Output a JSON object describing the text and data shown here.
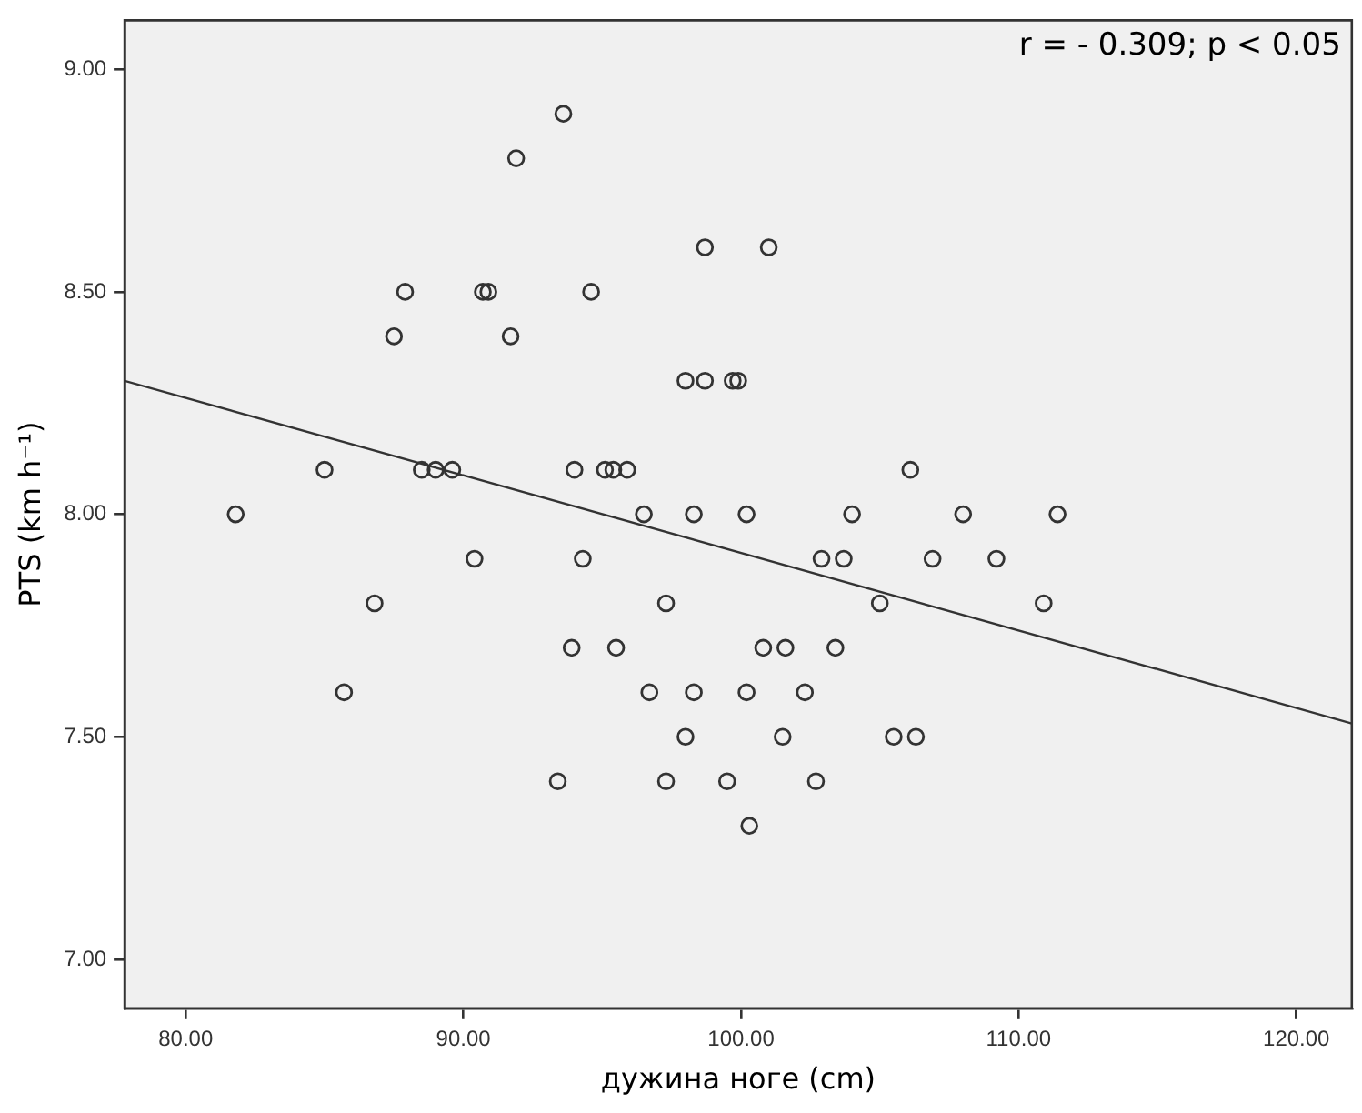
{
  "chart_data": {
    "type": "scatter",
    "xlabel": "дужина ноге (cm)",
    "ylabel": "PTS (km h⁻¹)",
    "annotations": [
      "r = - 0.309; p < 0.05"
    ],
    "xlim": [
      77.8,
      122
    ],
    "ylim": [
      6.89,
      9.11
    ],
    "xticks": [
      {
        "value": 80,
        "label": "80.00"
      },
      {
        "value": 90,
        "label": "90.00"
      },
      {
        "value": 100,
        "label": "100.00"
      },
      {
        "value": 110,
        "label": "110.00"
      },
      {
        "value": 120,
        "label": "120.00"
      }
    ],
    "yticks": [
      {
        "value": 7,
        "label": "7.00"
      },
      {
        "value": 7.5,
        "label": "7.50"
      },
      {
        "value": 8,
        "label": "8.00"
      },
      {
        "value": 8.5,
        "label": "8.50"
      },
      {
        "value": 9,
        "label": "9.00"
      }
    ],
    "marker": "circle",
    "series": [
      {
        "type": "scatter",
        "color": "#333333",
        "x": [
          81.8,
          85.0,
          87.9,
          87.5,
          88.5,
          89.0,
          89.6,
          90.7,
          90.9,
          91.9,
          91.7,
          93.6,
          94.6,
          94.0,
          95.1,
          95.4,
          95.9,
          96.5,
          98.3,
          100.2,
          98.7,
          98.0,
          98.7,
          99.7,
          99.9,
          101.0,
          106.1,
          104.0,
          108.0,
          111.4,
          90.4,
          94.3,
          86.8,
          97.3,
          93.9,
          95.5,
          85.7,
          96.7,
          98.3,
          100.2,
          98.0,
          93.4,
          97.3,
          99.5,
          100.3,
          102.9,
          103.7,
          106.9,
          109.2,
          105.0,
          110.9,
          100.8,
          101.6,
          103.4,
          102.3,
          101.5,
          105.5,
          106.3,
          102.7
        ],
        "values": [
          8.0,
          8.1,
          8.5,
          8.4,
          8.1,
          8.1,
          8.1,
          8.5,
          8.5,
          8.8,
          8.4,
          8.9,
          8.5,
          8.1,
          8.1,
          8.1,
          8.1,
          8.0,
          8.0,
          8.0,
          8.6,
          8.3,
          8.3,
          8.3,
          8.3,
          8.6,
          8.1,
          8.0,
          8.0,
          8.0,
          7.9,
          7.9,
          7.8,
          7.8,
          7.7,
          7.7,
          7.6,
          7.6,
          7.6,
          7.6,
          7.5,
          7.4,
          7.4,
          7.4,
          7.3,
          7.9,
          7.9,
          7.9,
          7.9,
          7.8,
          7.8,
          7.7,
          7.7,
          7.7,
          7.6,
          7.5,
          7.5,
          7.5,
          7.4
        ]
      },
      {
        "type": "line",
        "color": "#333333",
        "marker": "none",
        "x": [
          77.8,
          122
        ],
        "values": [
          8.3,
          7.53
        ]
      }
    ]
  }
}
